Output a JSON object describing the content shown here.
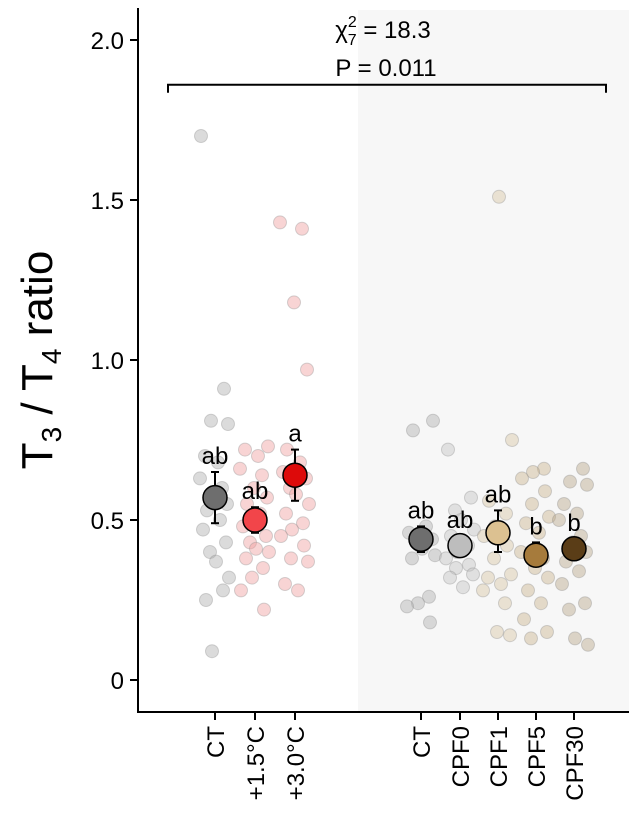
{
  "chart_data": {
    "type": "scatter",
    "ylabel": {
      "parts": [
        "T",
        "3",
        " / T",
        "4",
        " ratio"
      ]
    },
    "ylim": [
      -0.08,
      2.1
    ],
    "yticks": [
      0,
      0.5,
      1.0,
      1.5,
      2.0
    ],
    "ytick_labels": [
      "0",
      "0.5",
      "1.0",
      "1.5",
      "2.0"
    ],
    "stat": {
      "chi_symbol": "χ",
      "chi_sup": "2",
      "chi_sub": "7",
      "chi_value": " = 18.3",
      "p_text": "P = 0.011"
    },
    "bracket_y": 1.86,
    "groups": [
      {
        "label": "CT",
        "panel": "temperature",
        "mean": 0.57,
        "err_low": 0.49,
        "err_high": 0.65,
        "letter": "ab",
        "color": "#6e6e6e",
        "point_color": "#b0b0b0",
        "points": [
          1.7,
          0.91,
          0.81,
          0.8,
          0.7,
          0.68,
          0.63,
          0.6,
          0.57,
          0.55,
          0.53,
          0.5,
          0.47,
          0.43,
          0.4,
          0.37,
          0.32,
          0.25,
          0.28,
          0.09
        ]
      },
      {
        "label": "+1.5°C",
        "panel": "temperature",
        "mean": 0.5,
        "err_low": 0.46,
        "err_high": 0.54,
        "letter": "ab",
        "color": "#f2454a",
        "point_color": "#f0a0a0",
        "points": [
          0.73,
          0.72,
          0.7,
          0.66,
          0.64,
          0.6,
          0.57,
          0.55,
          0.52,
          0.48,
          0.45,
          0.43,
          0.41,
          0.4,
          0.38,
          0.35,
          0.32,
          0.28,
          0.22
        ]
      },
      {
        "label": "+3.0°C",
        "panel": "temperature",
        "mean": 0.64,
        "err_low": 0.56,
        "err_high": 0.72,
        "letter": "a",
        "color": "#dd0a0a",
        "point_color": "#f0a0a0",
        "points": [
          1.43,
          1.41,
          1.18,
          0.97,
          0.72,
          0.68,
          0.65,
          0.63,
          0.6,
          0.58,
          0.55,
          0.52,
          0.49,
          0.47,
          0.45,
          0.42,
          0.38,
          0.37,
          0.3,
          0.28
        ]
      },
      {
        "label": "CT",
        "panel": "cpf",
        "mean": 0.44,
        "err_low": 0.4,
        "err_high": 0.48,
        "letter": "ab",
        "color": "#6e6e6e",
        "point_color": "#b0b0b0",
        "points": [
          0.81,
          0.78,
          0.48,
          0.46,
          0.44,
          0.43,
          0.41,
          0.39,
          0.38,
          0.26,
          0.24,
          0.23,
          0.18
        ]
      },
      {
        "label": "CPF0",
        "panel": "cpf",
        "mean": 0.42,
        "err_low": 0.39,
        "err_high": 0.45,
        "letter": "ab",
        "color": "#bdbdbd",
        "point_color": "#c4c4c4",
        "points": [
          0.72,
          0.57,
          0.53,
          0.5,
          0.47,
          0.45,
          0.42,
          0.4,
          0.38,
          0.36,
          0.35,
          0.33,
          0.32,
          0.29
        ]
      },
      {
        "label": "CPF1",
        "panel": "cpf",
        "mean": 0.46,
        "err_low": 0.4,
        "err_high": 0.53,
        "letter": "ab",
        "color": "#dcc191",
        "point_color": "#d8c6a4",
        "points": [
          1.51,
          0.75,
          0.56,
          0.52,
          0.48,
          0.45,
          0.42,
          0.38,
          0.33,
          0.32,
          0.3,
          0.28,
          0.24,
          0.15,
          0.14
        ]
      },
      {
        "label": "CPF5",
        "panel": "cpf",
        "mean": 0.39,
        "err_low": 0.36,
        "err_high": 0.43,
        "letter": "b",
        "color": "#a67b3c",
        "point_color": "#c9b48e",
        "points": [
          0.66,
          0.65,
          0.63,
          0.59,
          0.55,
          0.51,
          0.49,
          0.46,
          0.4,
          0.38,
          0.35,
          0.32,
          0.28,
          0.24,
          0.19,
          0.15,
          0.13
        ]
      },
      {
        "label": "CPF30",
        "panel": "cpf",
        "mean": 0.41,
        "err_low": 0.38,
        "err_high": 0.44,
        "letter": "b",
        "color": "#5a3d17",
        "point_color": "#b8a78a",
        "points": [
          0.66,
          0.62,
          0.61,
          0.55,
          0.52,
          0.5,
          0.45,
          0.43,
          0.4,
          0.37,
          0.34,
          0.3,
          0.24,
          0.22,
          0.13,
          0.11
        ]
      }
    ]
  }
}
